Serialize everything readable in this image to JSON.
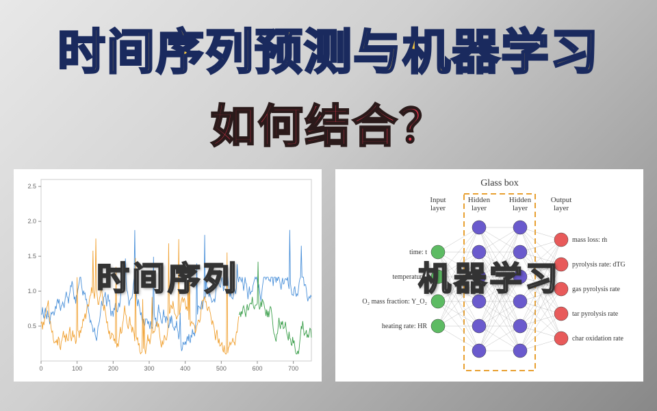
{
  "title_line1": "时间序列预测与机器学习",
  "title_line2": "如何结合？",
  "left_panel": {
    "overlay": "时间序列",
    "chart": {
      "type": "line",
      "background_color": "#ffffff",
      "xlim": [
        0,
        750
      ],
      "ylim": [
        0,
        2.6
      ],
      "xticks": [
        0,
        100,
        200,
        300,
        400,
        500,
        600,
        700
      ],
      "yticks": [
        0.5,
        1.0,
        1.5,
        2.0,
        2.5
      ],
      "series": [
        {
          "color": "#4a90d9",
          "range": [
            0,
            750
          ]
        },
        {
          "color": "#f0a030",
          "range": [
            0,
            550
          ]
        },
        {
          "color": "#3a9e4a",
          "range": [
            550,
            750
          ]
        }
      ],
      "grid_color": "#f0f0f0",
      "axis_color": "#cccccc"
    }
  },
  "right_panel": {
    "overlay": "机器学习",
    "nn": {
      "glassbox_title": "Glass box",
      "glassbox_color": "#e8a030",
      "layers": [
        {
          "label": "Input layer",
          "color": "#5dbb63",
          "count": 4
        },
        {
          "label": "Hidden layer",
          "color": "#6a5acd",
          "count": 6
        },
        {
          "label": "Hidden layer",
          "color": "#6a5acd",
          "count": 6
        },
        {
          "label": "Output layer",
          "color": "#e85a5a",
          "count": 5
        }
      ],
      "inputs": [
        "time: t",
        "temperature:",
        "O₂ mass fraction: Y_O₂",
        "heating rate: HR"
      ],
      "outputs": [
        "mass loss: ṁ",
        "pyrolysis rate: dTG",
        "gas pyrolysis rate",
        "tar pyrolysis rate",
        "char oxidation rate"
      ],
      "edge_color": "#b0b0b0",
      "node_radius": 10
    }
  }
}
